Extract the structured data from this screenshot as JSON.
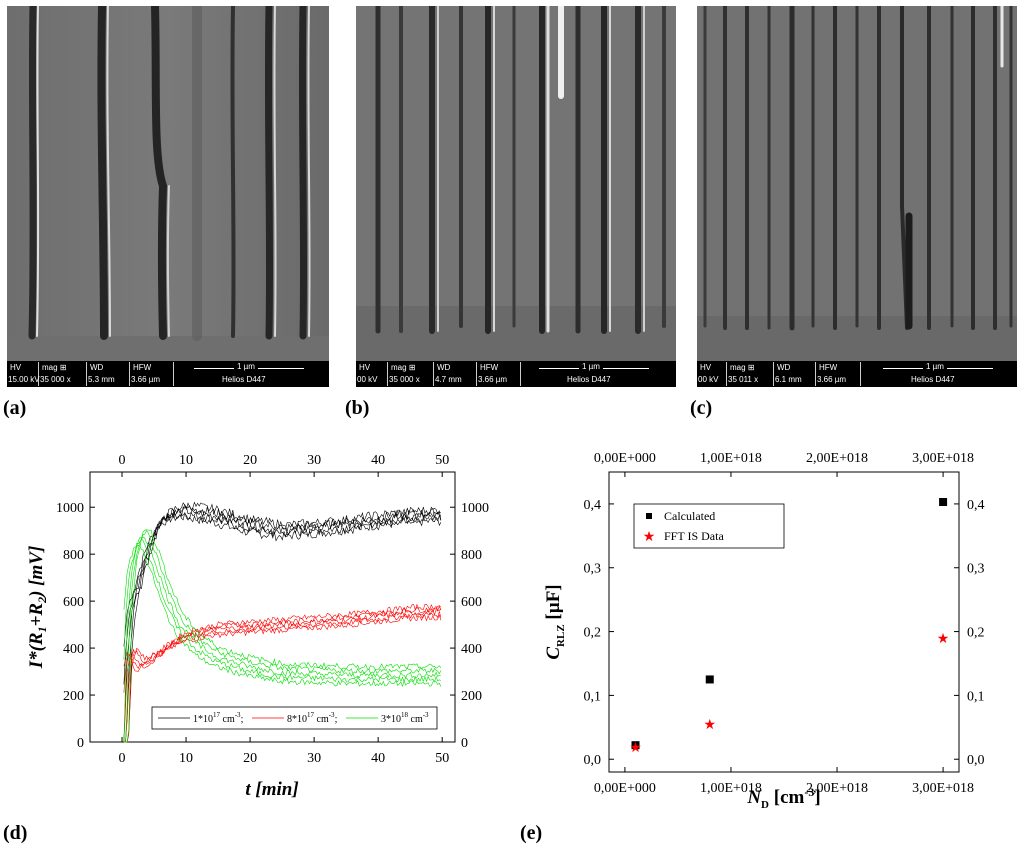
{
  "panels": {
    "a": {
      "label": "(a)",
      "hv_label": "HV",
      "hv": "15.00 kV",
      "mag_label": "mag ⊞",
      "mag": "35 000 x",
      "wd_label": "WD",
      "wd": "5.3 mm",
      "hfw_label": "HFW",
      "hfw": "3.66 µm",
      "scale": "1 µm",
      "instrument": "Helios D447"
    },
    "b": {
      "label": "(b)",
      "hv_label": "HV",
      "hv": "00 kV",
      "mag_label": "mag ⊞",
      "mag": "35 000 x",
      "wd_label": "WD",
      "wd": "4.7 mm",
      "hfw_label": "HFW",
      "hfw": "3.66 µm",
      "scale": "1 µm",
      "instrument": "Helios D447"
    },
    "c": {
      "label": "(c)",
      "hv_label": "HV",
      "hv": "00 kV",
      "mag_label": "mag ⊞",
      "mag": "35 011 x",
      "wd_label": "WD",
      "wd": "6.1 mm",
      "hfw_label": "HFW",
      "hfw": "3.66 µm",
      "scale": "1 µm",
      "instrument": "Helios D447"
    },
    "d": {
      "label": "(d)"
    },
    "e": {
      "label": "(e)"
    }
  },
  "chart_data": [
    {
      "type": "line",
      "id": "d",
      "xlabel": "t  [min]",
      "ylabel": "I*(R1+R2)  [mV]",
      "xlim": [
        -5,
        52
      ],
      "ylim": [
        0,
        1150
      ],
      "x_ticks": [
        0,
        10,
        20,
        30,
        40,
        50
      ],
      "y_ticks": [
        0,
        200,
        400,
        600,
        800,
        1000
      ],
      "x_tick_labels": [
        "0",
        "10",
        "20",
        "30",
        "40",
        "50"
      ],
      "y_tick_labels": [
        "0",
        "200",
        "400",
        "600",
        "800",
        "1000"
      ],
      "legend": [
        "1*10",
        "8*10",
        "3*10"
      ],
      "legend_exp": [
        "17",
        "17",
        "18"
      ],
      "legend_unit": "cm",
      "legend_unit_exp": "-3",
      "series": [
        {
          "name": "1*10^17 cm^-3",
          "color": "#000000",
          "x": [
            0.3,
            0.8,
            1.5,
            3,
            4.5,
            6,
            8,
            10,
            15,
            20,
            25,
            30,
            35,
            40,
            45,
            50
          ],
          "y": [
            0,
            350,
            550,
            720,
            850,
            940,
            975,
            985,
            960,
            920,
            900,
            910,
            925,
            945,
            960,
            965
          ]
        },
        {
          "name": "8*10^17 cm^-3",
          "color": "#ff0000",
          "x": [
            0.3,
            0.8,
            1.5,
            3,
            5,
            8,
            10,
            15,
            20,
            25,
            30,
            35,
            40,
            45,
            50
          ],
          "y": [
            0,
            300,
            380,
            330,
            360,
            420,
            450,
            480,
            490,
            500,
            510,
            520,
            535,
            550,
            555
          ]
        },
        {
          "name": "3*10^18 cm^-3",
          "color": "#00e000",
          "x": [
            0.3,
            0.8,
            1.5,
            2.5,
            3.5,
            5,
            7,
            9,
            12,
            15,
            20,
            25,
            30,
            35,
            40,
            45,
            50
          ],
          "y": [
            0,
            500,
            720,
            850,
            880,
            780,
            620,
            500,
            410,
            360,
            320,
            295,
            290,
            285,
            285,
            285,
            285
          ]
        }
      ]
    },
    {
      "type": "scatter",
      "id": "e",
      "xlabel": "N",
      "xlabel_sub": "D",
      "xlabel_unit": "  [cm",
      "xlabel_unit_exp": "-3",
      "xlabel_unit_end": "]",
      "ylabel": "C",
      "ylabel_sub": "RLZ",
      "ylabel_unit": "  [µF]",
      "xlim": [
        -1.5e+17,
        3.15e+18
      ],
      "ylim": [
        -0.02,
        0.45
      ],
      "x_ticks": [
        0,
        1e+18,
        2e+18,
        3e+18
      ],
      "x_tick_labels": [
        "0,00E+000",
        "1,00E+018",
        "2,00E+018",
        "3,00E+018"
      ],
      "y_ticks": [
        0,
        0.1,
        0.2,
        0.3,
        0.4
      ],
      "y_tick_labels": [
        "0,0",
        "0,1",
        "0,2",
        "0,3",
        "0,4"
      ],
      "series": [
        {
          "name": "Calculated",
          "marker": "square",
          "color": "#000000",
          "x": [
            1e+17,
            8e+17,
            3e+18
          ],
          "y": [
            0.022,
            0.125,
            0.403
          ]
        },
        {
          "name": "FFT IS Data",
          "marker": "star",
          "color": "#ff0000",
          "x": [
            1e+17,
            8e+17,
            3e+18
          ],
          "y": [
            0.019,
            0.055,
            0.19
          ]
        }
      ]
    }
  ]
}
